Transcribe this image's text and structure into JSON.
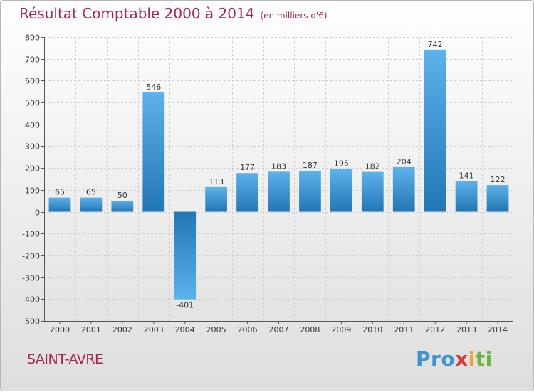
{
  "header": {
    "title": "Résultat Comptable 2000 à 2014",
    "unit": "(en milliers d'€)"
  },
  "footer": {
    "place": "SAINT-AVRE",
    "logo": "Proxiti"
  },
  "colors": {
    "title": "#a8264f",
    "bar_light": "#58aee8",
    "bar_dark": "#2379b8"
  },
  "chart_data": {
    "type": "bar",
    "title": "Résultat Comptable 2000 à 2014",
    "categories": [
      "2000",
      "2001",
      "2002",
      "2003",
      "2004",
      "2005",
      "2006",
      "2007",
      "2008",
      "2009",
      "2010",
      "2011",
      "2012",
      "2013",
      "2014"
    ],
    "values": [
      65,
      65,
      50,
      546,
      -401,
      113,
      177,
      183,
      187,
      195,
      182,
      204,
      742,
      141,
      122
    ],
    "ylim": [
      -500,
      800
    ],
    "yticks": [
      800,
      700,
      600,
      500,
      400,
      300,
      200,
      100,
      0,
      -100,
      -200,
      -300,
      -400,
      -500
    ],
    "grid": true,
    "legend": "none"
  }
}
